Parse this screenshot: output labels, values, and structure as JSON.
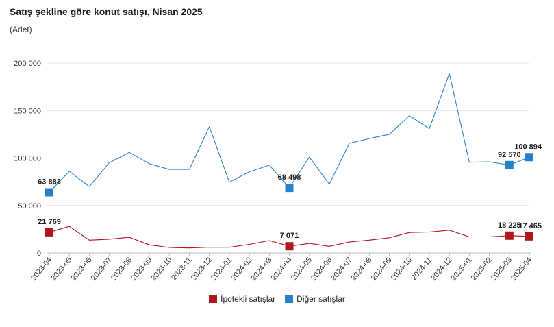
{
  "title": "Satış şekline göre konut satışı, Nisan 2025",
  "subtitle": "(Adet)",
  "chart_data": {
    "type": "line",
    "categories": [
      "2023-04",
      "2023-05",
      "2023-06",
      "2023-07",
      "2023-08",
      "2023-09",
      "2023-10",
      "2023-11",
      "2023-12",
      "2024-01",
      "2024-02",
      "2024-03",
      "2024-04",
      "2024-05",
      "2024-06",
      "2024-07",
      "2024-08",
      "2024-09",
      "2024-10",
      "2024-11",
      "2024-12",
      "2025-01",
      "2025-02",
      "2025-03",
      "2025-04"
    ],
    "ylim": [
      0,
      200000
    ],
    "yticks": [
      0,
      50000,
      100000,
      150000,
      200000
    ],
    "ytick_labels": [
      "0",
      "50 000",
      "100 000",
      "150 000",
      "200 000"
    ],
    "grid": true,
    "legend_position": "bottom",
    "series": [
      {
        "name": "İpotekli satışlar",
        "color": "#b0161c",
        "values": [
          21769,
          28000,
          13500,
          14500,
          16500,
          8500,
          5800,
          5300,
          6100,
          6000,
          9000,
          13000,
          7071,
          10000,
          7000,
          11500,
          13500,
          16000,
          21500,
          22000,
          24000,
          17000,
          17000,
          18225,
          17465
        ],
        "labeled_points": [
          {
            "index": 0,
            "label": "21 769"
          },
          {
            "index": 12,
            "label": "7 071"
          },
          {
            "index": 23,
            "label": "18 225"
          },
          {
            "index": 24,
            "label": "17 465"
          }
        ]
      },
      {
        "name": "Diğer satışlar",
        "color": "#2a7fc9",
        "values": [
          63883,
          86000,
          70000,
          95000,
          106000,
          94000,
          88000,
          88000,
          133000,
          74500,
          85500,
          92500,
          68498,
          101000,
          72500,
          115500,
          120500,
          125000,
          144500,
          131000,
          189000,
          95500,
          96000,
          92570,
          100894
        ],
        "labeled_points": [
          {
            "index": 0,
            "label": "63 883"
          },
          {
            "index": 12,
            "label": "68 498"
          },
          {
            "index": 23,
            "label": "92 570"
          },
          {
            "index": 24,
            "label": "100 894"
          }
        ]
      }
    ]
  }
}
